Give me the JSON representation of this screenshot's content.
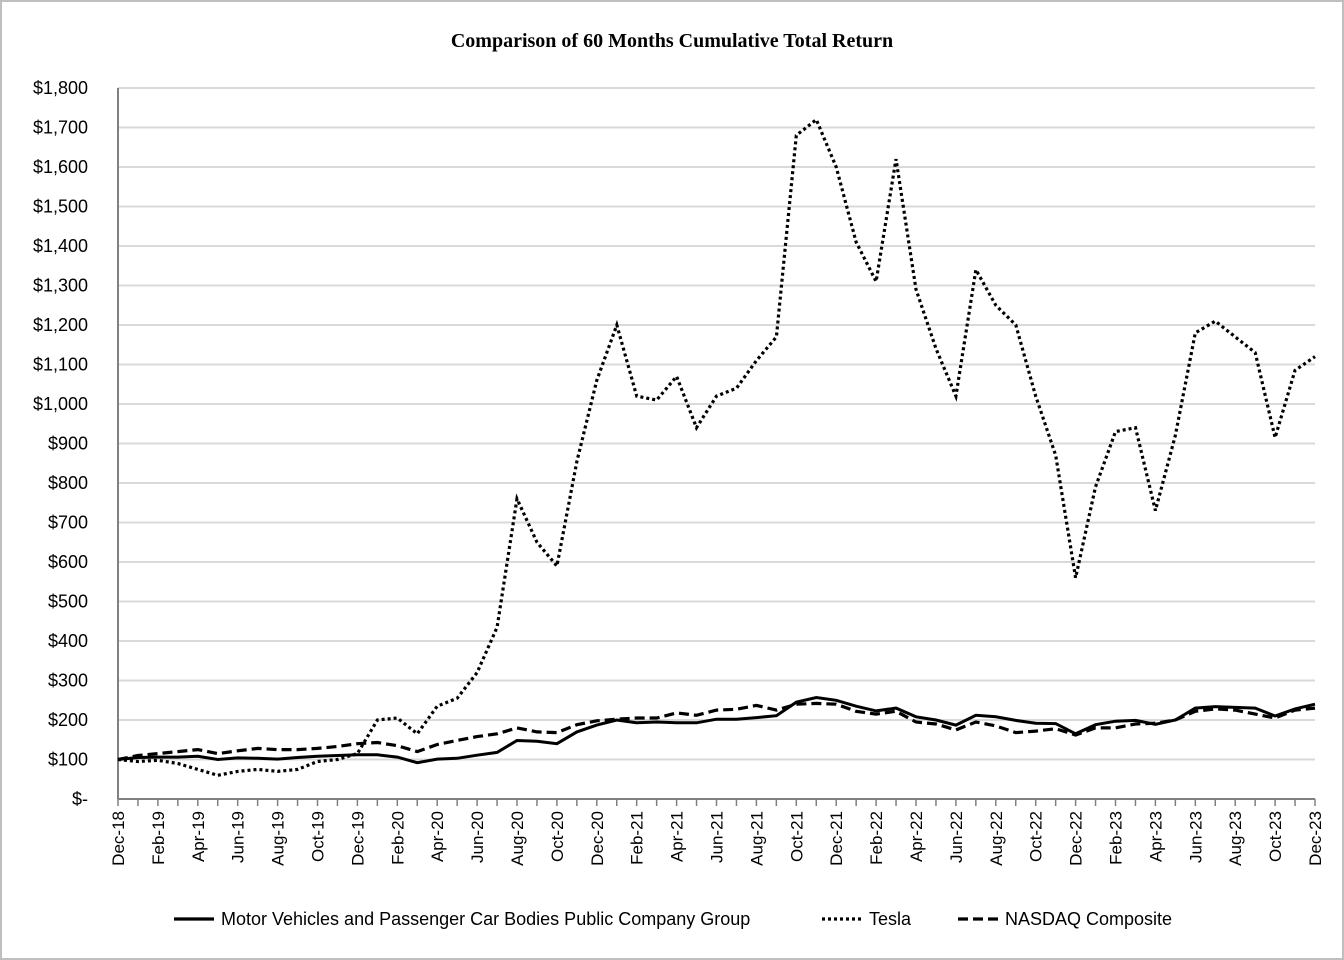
{
  "chart_data": {
    "type": "line",
    "title": "Comparison of 60 Months Cumulative Total Return",
    "xlabel": "",
    "ylabel": "",
    "ylim": [
      0,
      1800
    ],
    "yticks": [
      0,
      100,
      200,
      300,
      400,
      500,
      600,
      700,
      800,
      900,
      1000,
      1100,
      1200,
      1300,
      1400,
      1500,
      1600,
      1700,
      1800
    ],
    "ytick_labels": [
      "$-",
      "$100",
      "$200",
      "$300",
      "$400",
      "$500",
      "$600",
      "$700",
      "$800",
      "$900",
      "$1,000",
      "$1,100",
      "$1,200",
      "$1,300",
      "$1,400",
      "$1,500",
      "$1,600",
      "$1,700",
      "$1,800"
    ],
    "x": [
      "Dec-18",
      "Jan-19",
      "Feb-19",
      "Mar-19",
      "Apr-19",
      "May-19",
      "Jun-19",
      "Jul-19",
      "Aug-19",
      "Sep-19",
      "Oct-19",
      "Nov-19",
      "Dec-19",
      "Jan-20",
      "Feb-20",
      "Mar-20",
      "Apr-20",
      "May-20",
      "Jun-20",
      "Jul-20",
      "Aug-20",
      "Sep-20",
      "Oct-20",
      "Nov-20",
      "Dec-20",
      "Jan-21",
      "Feb-21",
      "Mar-21",
      "Apr-21",
      "May-21",
      "Jun-21",
      "Jul-21",
      "Aug-21",
      "Sep-21",
      "Oct-21",
      "Nov-21",
      "Dec-21",
      "Jan-22",
      "Feb-22",
      "Mar-22",
      "Apr-22",
      "May-22",
      "Jun-22",
      "Jul-22",
      "Aug-22",
      "Sep-22",
      "Oct-22",
      "Nov-22",
      "Dec-22",
      "Jan-23",
      "Feb-23",
      "Mar-23",
      "Apr-23",
      "May-23",
      "Jun-23",
      "Jul-23",
      "Aug-23",
      "Sep-23",
      "Oct-23",
      "Nov-23",
      "Dec-23"
    ],
    "x_tick_labels": [
      "Dec-18",
      "Feb-19",
      "Apr-19",
      "Jun-19",
      "Aug-19",
      "Oct-19",
      "Dec-19",
      "Feb-20",
      "Apr-20",
      "Jun-20",
      "Aug-20",
      "Oct-20",
      "Dec-20",
      "Feb-21",
      "Apr-21",
      "Jun-21",
      "Aug-21",
      "Oct-21",
      "Dec-21",
      "Feb-22",
      "Apr-22",
      "Jun-22",
      "Aug-22",
      "Oct-22",
      "Dec-22",
      "Feb-23",
      "Apr-23",
      "Jun-23",
      "Aug-23",
      "Oct-23",
      "Dec-23"
    ],
    "grid": true,
    "legend_position": "bottom",
    "series": [
      {
        "name": "Motor Vehicles and Passenger Car Bodies Public Company Group",
        "style": "solid",
        "values": [
          100,
          105,
          106,
          106,
          108,
          100,
          104,
          103,
          101,
          105,
          108,
          110,
          112,
          112,
          106,
          92,
          101,
          103,
          111,
          118,
          148,
          146,
          140,
          170,
          187,
          200,
          193,
          195,
          193,
          193,
          202,
          202,
          206,
          211,
          245,
          257,
          250,
          235,
          223,
          230,
          208,
          200,
          187,
          212,
          208,
          199,
          192,
          191,
          165,
          188,
          197,
          199,
          189,
          200,
          230,
          234,
          232,
          230,
          210,
          228,
          240
        ],
        "color": "#000000"
      },
      {
        "name": "Tesla",
        "style": "dotted",
        "values": [
          100,
          95,
          98,
          90,
          75,
          60,
          70,
          75,
          70,
          75,
          95,
          100,
          115,
          200,
          205,
          165,
          235,
          255,
          320,
          435,
          760,
          650,
          590,
          855,
          1060,
          1200,
          1020,
          1010,
          1070,
          940,
          1020,
          1040,
          1110,
          1170,
          1680,
          1720,
          1600,
          1410,
          1310,
          1620,
          1290,
          1140,
          1020,
          1340,
          1250,
          1200,
          1020,
          870,
          560,
          790,
          930,
          940,
          730,
          920,
          1180,
          1210,
          1170,
          1130,
          915,
          1085,
          1120
        ],
        "color": "#000000"
      },
      {
        "name": "NASDAQ Composite",
        "style": "dashed",
        "values": [
          100,
          110,
          115,
          120,
          125,
          115,
          122,
          128,
          125,
          125,
          128,
          133,
          140,
          143,
          135,
          120,
          138,
          148,
          158,
          165,
          180,
          170,
          168,
          188,
          198,
          202,
          205,
          205,
          218,
          212,
          225,
          227,
          237,
          225,
          240,
          242,
          240,
          222,
          215,
          222,
          195,
          190,
          175,
          195,
          185,
          168,
          172,
          178,
          162,
          180,
          180,
          190,
          192,
          200,
          222,
          228,
          225,
          215,
          205,
          225,
          230
        ],
        "color": "#000000"
      }
    ]
  }
}
